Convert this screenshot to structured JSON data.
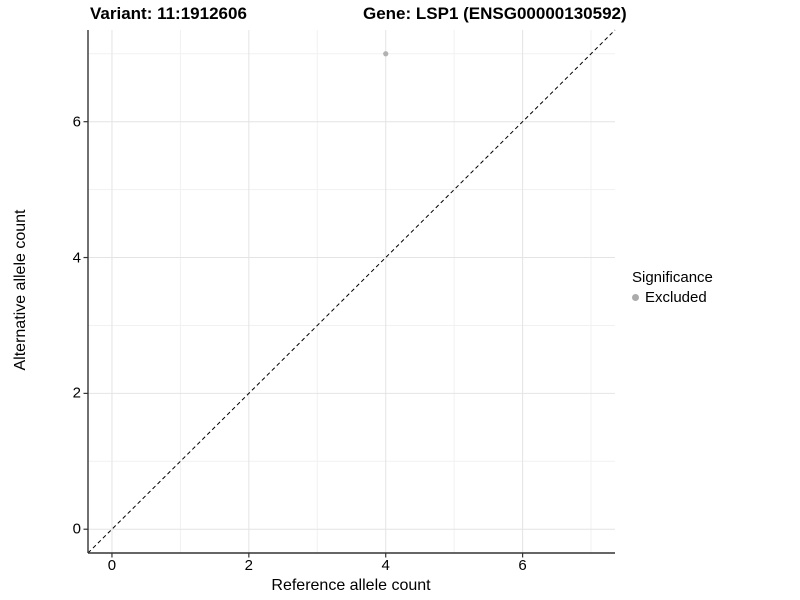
{
  "title": {
    "variant": "Variant: 11:1912606",
    "gene": "Gene: LSP1 (ENSG00000130592)"
  },
  "chart_data": {
    "type": "scatter",
    "xlabel": "Reference allele count",
    "ylabel": "Alternative allele count",
    "xlim": [
      -0.35,
      7.35
    ],
    "ylim": [
      -0.35,
      7.35
    ],
    "x_ticks": [
      0,
      2,
      4,
      6
    ],
    "y_ticks": [
      0,
      2,
      4,
      6
    ],
    "x_minor_ticks": [
      1,
      3,
      5,
      7
    ],
    "y_minor_ticks": [
      1,
      3,
      5,
      7
    ],
    "grid": "major and minor gridlines on, white panel",
    "points": [
      {
        "x": 4,
        "y": 7,
        "series": "Excluded"
      }
    ],
    "reference_line": {
      "kind": "identity y=x",
      "style": "dashed",
      "span": "panel corner to corner"
    },
    "legend": {
      "title": "Significance",
      "position": "right",
      "items": [
        {
          "label": "Excluded",
          "color": "#ababab",
          "marker": "circle"
        }
      ]
    }
  },
  "colors": {
    "background": "#ffffff",
    "point": "#b2b2b2",
    "legend_dot": "#ababab",
    "grid_major": "#e4e4e4",
    "grid_minor": "#f1f1f1",
    "axis_line": "#333333",
    "tick_mark": "#333333",
    "text": "#000000",
    "reference_line": "#000000"
  }
}
